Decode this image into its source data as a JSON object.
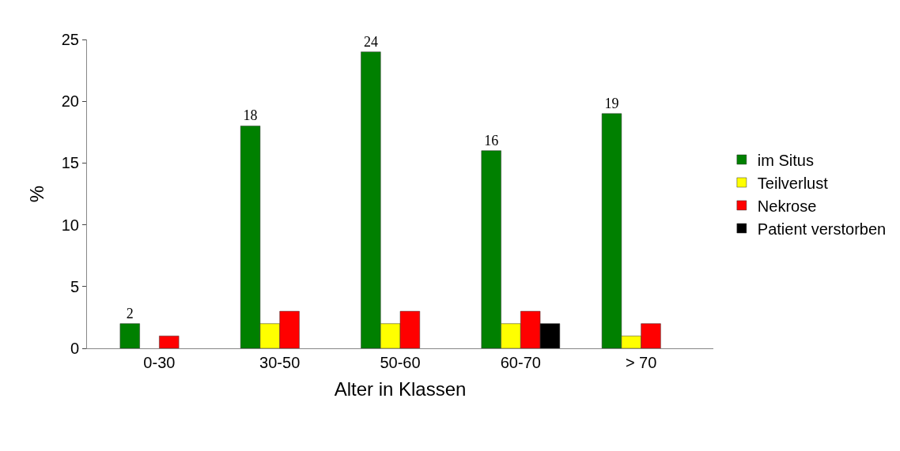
{
  "chart_data": {
    "type": "bar",
    "xlabel": "Alter in Klassen",
    "ylabel": "%",
    "categories": [
      "0-30",
      "30-50",
      "50-60",
      "60-70",
      "> 70"
    ],
    "series": [
      {
        "name": "im Situs",
        "color": "#008000",
        "values": [
          2,
          18,
          24,
          16,
          19
        ],
        "value_labels": [
          "2",
          "18",
          "24",
          "16",
          "19"
        ]
      },
      {
        "name": "Teilverlust",
        "color": "#ffff00",
        "values": [
          null,
          2,
          2,
          2,
          1
        ]
      },
      {
        "name": "Nekrose",
        "color": "#ff0000",
        "values": [
          1,
          3,
          3,
          3,
          2
        ]
      },
      {
        "name": "Patient verstorben",
        "color": "#000000",
        "values": [
          null,
          null,
          null,
          2,
          null
        ]
      }
    ],
    "ylim": [
      0,
      25
    ],
    "yticks": [
      0,
      5,
      10,
      15,
      20,
      25
    ],
    "grid": false,
    "legend": "right"
  }
}
